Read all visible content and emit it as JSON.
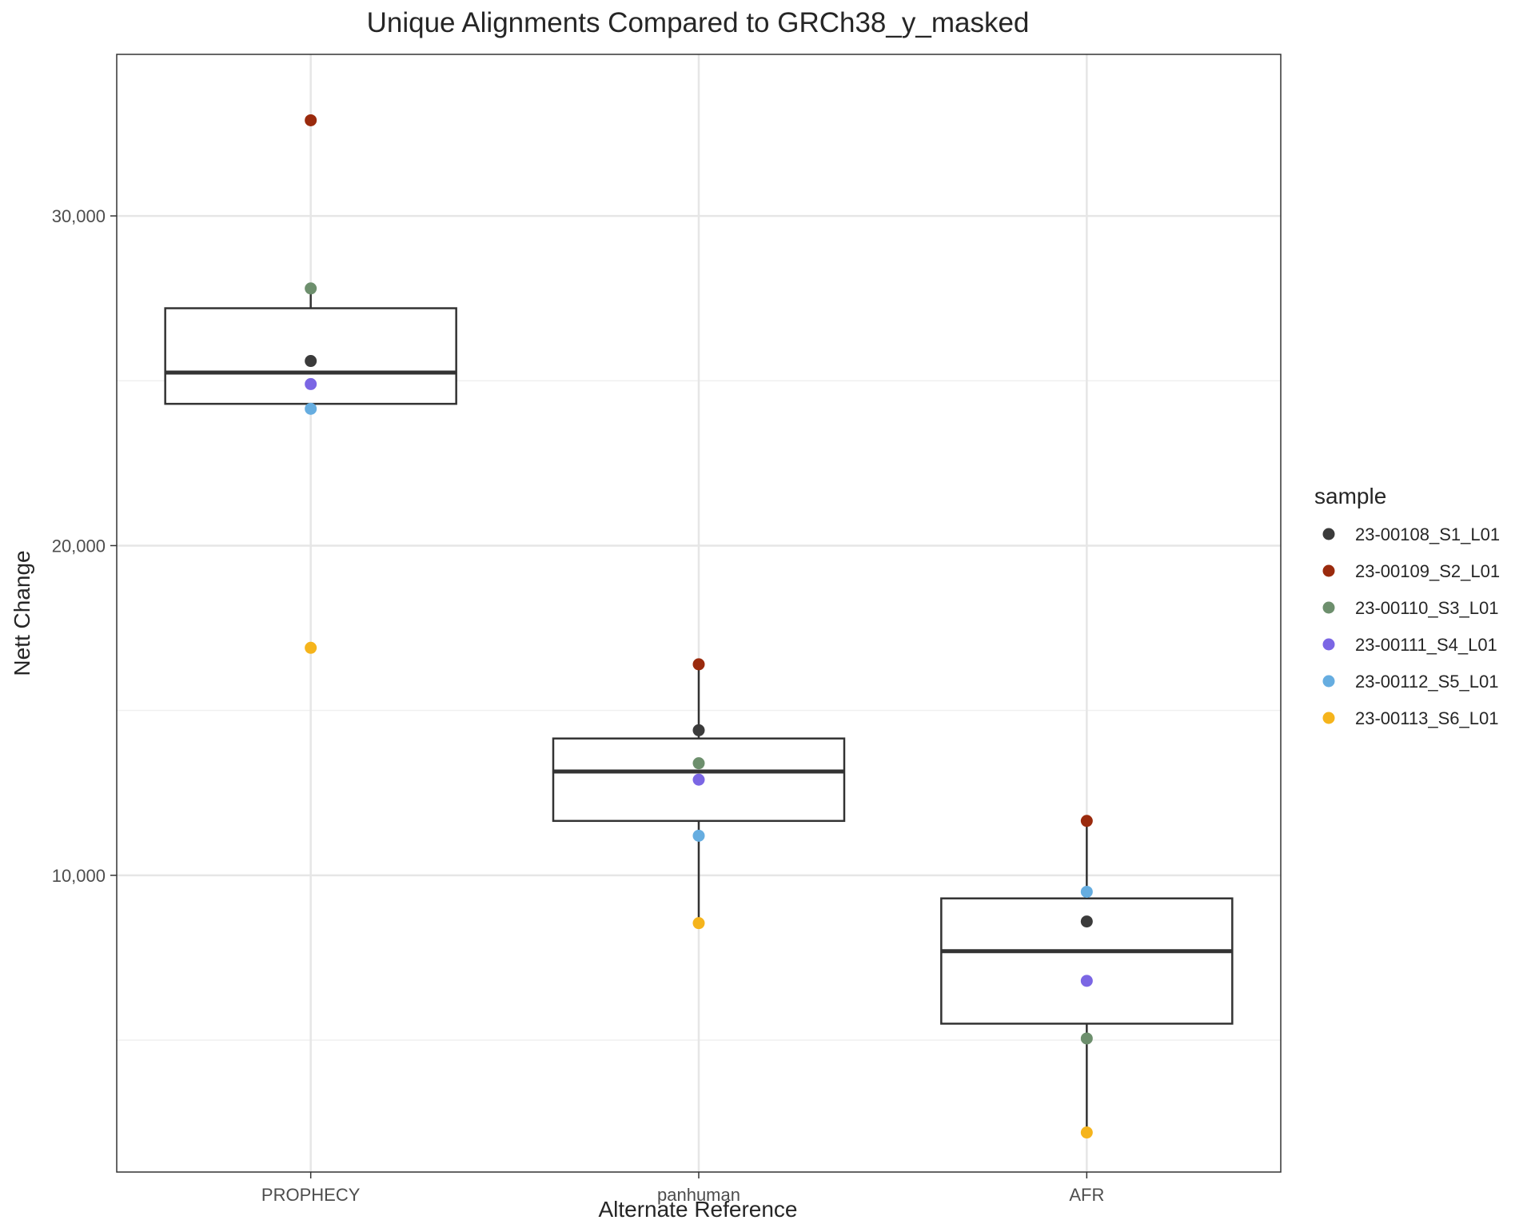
{
  "chart_data": {
    "type": "boxplot",
    "title": "Unique Alignments Compared to GRCh38_y_masked",
    "xlabel": "Alternate Reference",
    "ylabel": "Nett Change",
    "categories": [
      "PROPHECY",
      "panhuman",
      "AFR"
    ],
    "ylim": [
      1000,
      34900
    ],
    "yticks": [
      10000,
      20000,
      30000
    ],
    "ytick_labels": [
      "10,000",
      "20,000",
      "30,000"
    ],
    "minor_yticks": [
      5000,
      15000,
      25000
    ],
    "grid": true,
    "legend_title": "sample",
    "legend_position": "right",
    "samples": [
      {
        "name": "23-00108_S1_L01",
        "color": "#3b3b3b"
      },
      {
        "name": "23-00109_S2_L01",
        "color": "#9a2a0d"
      },
      {
        "name": "23-00110_S3_L01",
        "color": "#6d8f6d"
      },
      {
        "name": "23-00111_S4_L01",
        "color": "#7b66e4"
      },
      {
        "name": "23-00112_S5_L01",
        "color": "#66ade0"
      },
      {
        "name": "23-00113_S6_L01",
        "color": "#f5b41c"
      }
    ],
    "boxes": [
      {
        "category": "PROPHECY",
        "min": 24100,
        "q1": 24300,
        "median": 25250,
        "q3": 27200,
        "max": 27800,
        "outliers": [
          32900,
          16900
        ]
      },
      {
        "category": "panhuman",
        "min": 8550,
        "q1": 11650,
        "median": 13150,
        "q3": 14150,
        "max": 16400,
        "outliers": []
      },
      {
        "category": "AFR",
        "min": 2200,
        "q1": 5500,
        "median": 7700,
        "q3": 9300,
        "max": 11650,
        "outliers": []
      }
    ],
    "points": {
      "PROPHECY": [
        25600,
        32900,
        27800,
        24900,
        24150,
        16900
      ],
      "panhuman": [
        14400,
        16400,
        13400,
        12900,
        11200,
        8550
      ],
      "AFR": [
        8600,
        11650,
        5050,
        6800,
        9500,
        2200
      ]
    }
  }
}
